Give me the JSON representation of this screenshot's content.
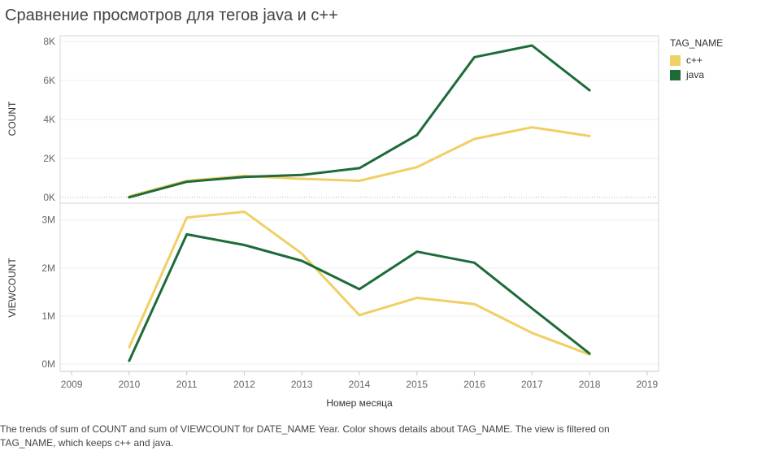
{
  "title": "Сравнение просмотров для тегов java и c++",
  "caption": "The trends of sum of COUNT and sum of VIEWCOUNT for DATE_NAME Year.  Color shows details about TAG_NAME. The view is filtered on TAG_NAME, which keeps c++ and java.",
  "legend": {
    "title": "TAG_NAME",
    "items": [
      {
        "label": "c++",
        "color": "#f0cf65"
      },
      {
        "label": "java",
        "color": "#1e6b3a"
      }
    ]
  },
  "chart_data": {
    "type": "line",
    "xlabel": "Номер месяца",
    "x_ticks": [
      2009,
      2010,
      2011,
      2012,
      2013,
      2014,
      2015,
      2016,
      2017,
      2018,
      2019
    ],
    "x_tick_labels": [
      "2009",
      "2010",
      "2011",
      "2012",
      "2013",
      "2014",
      "2015",
      "2016",
      "2017",
      "2018",
      "2019"
    ],
    "x": [
      2010,
      2011,
      2012,
      2013,
      2014,
      2015,
      2016,
      2017,
      2018
    ],
    "xlim": [
      2008.8,
      2019.2
    ],
    "panels": [
      {
        "ylabel": "COUNT",
        "ylim": [
          -300,
          8300
        ],
        "y_ticks": [
          0,
          2000,
          4000,
          6000,
          8000
        ],
        "y_tick_labels": [
          "0K",
          "2K",
          "4K",
          "6K",
          "8K"
        ],
        "series": [
          {
            "name": "c++",
            "color": "#f0cf65",
            "values": [
              50,
              850,
              1100,
              950,
              850,
              1550,
              3000,
              3600,
              3150
            ]
          },
          {
            "name": "java",
            "color": "#1e6b3a",
            "values": [
              0,
              800,
              1050,
              1150,
              1500,
              3200,
              7200,
              7800,
              5500
            ]
          }
        ]
      },
      {
        "ylabel": "VIEWCOUNT",
        "ylim": [
          -150000,
          3350000
        ],
        "y_ticks": [
          0,
          1000000,
          2000000,
          3000000
        ],
        "y_tick_labels": [
          "0M",
          "1M",
          "2M",
          "3M"
        ],
        "series": [
          {
            "name": "c++",
            "color": "#f0cf65",
            "values": [
              350000,
              3050000,
              3170000,
              2300000,
              1020000,
              1380000,
              1250000,
              650000,
              200000
            ]
          },
          {
            "name": "java",
            "color": "#1e6b3a",
            "values": [
              70000,
              2700000,
              2480000,
              2150000,
              1560000,
              2340000,
              2110000,
              1160000,
              220000
            ]
          }
        ]
      }
    ]
  }
}
